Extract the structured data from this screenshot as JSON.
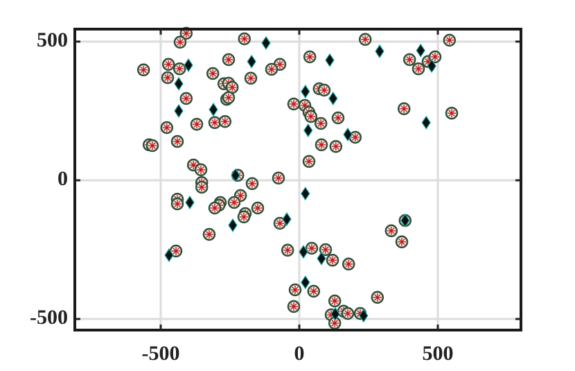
{
  "chart_data": {
    "type": "scatter",
    "xlim": [
      -810,
      800
    ],
    "ylim": [
      -540,
      545
    ],
    "xticks": [
      -500,
      0,
      500
    ],
    "yticks": [
      -500,
      0,
      500
    ],
    "grid": true,
    "series": [
      {
        "marker": "circle",
        "color": "#f3e8dc",
        "edge_color": "#2f4f3a",
        "inner_color": "#c0141c",
        "x": [
          -562,
          -408,
          -430,
          -198,
          -472,
          -432,
          -475,
          -408,
          -312,
          -255,
          -175,
          -70,
          -100,
          -272,
          -255,
          -242,
          -262,
          -255,
          -370,
          -305,
          -268,
          -478,
          -440,
          -542,
          -530,
          -382,
          -355,
          -352,
          -352,
          -222,
          -170,
          -212,
          -235,
          -285,
          -290,
          -305,
          -440,
          -440,
          -150,
          -195,
          -200,
          -325,
          -75,
          -70,
          -445,
          38,
          -20,
          20,
          35,
          42,
          72,
          90,
          78,
          140,
          80,
          132,
          202,
          35,
          238,
          542,
          398,
          430,
          465,
          490,
          378,
          550,
          332,
          370,
          382,
          -42,
          45,
          95,
          120,
          178,
          -15,
          52,
          128,
          -20,
          282,
          115,
          160,
          175,
          220,
          128
        ],
        "values": [
          398,
          530,
          498,
          510,
          418,
          402,
          370,
          295,
          385,
          435,
          368,
          418,
          400,
          348,
          350,
          335,
          292,
          298,
          202,
          208,
          212,
          190,
          140,
          128,
          125,
          55,
          38,
          -8,
          -25,
          18,
          -12,
          -55,
          -80,
          -80,
          -90,
          -100,
          -68,
          -85,
          -100,
          -120,
          -132,
          -195,
          8,
          -155,
          -255,
          445,
          275,
          270,
          245,
          230,
          330,
          325,
          205,
          225,
          128,
          122,
          155,
          68,
          508,
          505,
          435,
          402,
          428,
          445,
          258,
          242,
          -182,
          -222,
          -145,
          -252,
          -245,
          -250,
          -288,
          -302,
          -395,
          -400,
          -435,
          -455,
          -422,
          -485,
          -472,
          -480,
          -480,
          -515
        ]
      },
      {
        "marker": "diamond",
        "color": "#0a0f10",
        "edge_color": "#1aa8a8",
        "x": [
          -120,
          -400,
          -172,
          -435,
          110,
          290,
          438,
          478,
          22,
          122,
          -435,
          -310,
          32,
          175,
          458,
          -230,
          22,
          -395,
          -240,
          -45,
          -470,
          15,
          80,
          382,
          22,
          130,
          232
        ],
        "values": [
          495,
          415,
          428,
          348,
          433,
          465,
          468,
          412,
          320,
          295,
          250,
          255,
          180,
          165,
          208,
          18,
          -48,
          -80,
          -162,
          -140,
          -270,
          -258,
          -282,
          -145,
          -368,
          -482,
          -488
        ]
      }
    ]
  }
}
